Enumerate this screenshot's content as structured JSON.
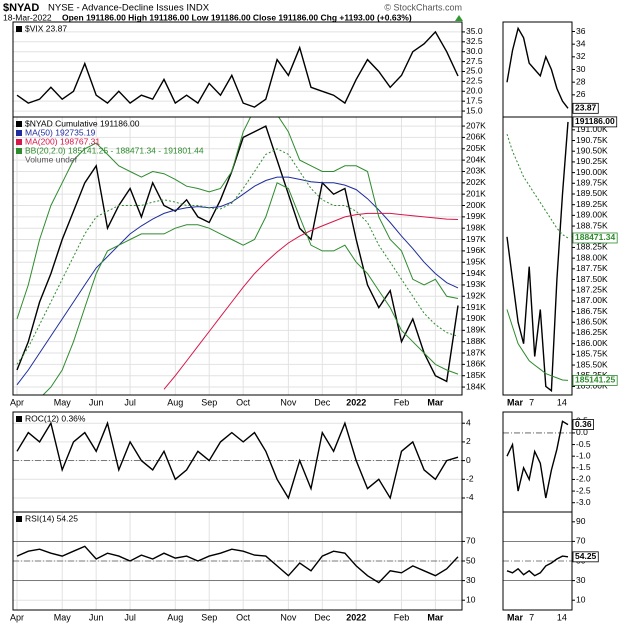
{
  "header": {
    "symbol": "$NYAD",
    "name": "NYSE - Advance-Decline Issues INDX",
    "source": "© StockCharts.com",
    "date": "18-Mar-2022",
    "quote": "Open 191186.00 High 191186.00 Low 191186.00 Close 191186.00 Chg +1193.00 (+0.63%)"
  },
  "chart_data": [
    {
      "type": "line",
      "grid": true,
      "series": [
        {
          "name": "$VIX 23.87",
          "color": "#000000",
          "values": [
            19,
            17,
            18,
            21,
            18,
            20,
            27,
            19,
            17,
            20,
            17,
            19,
            18,
            23,
            17,
            19,
            17,
            22,
            19,
            24,
            17,
            16,
            18,
            28,
            24,
            31,
            21,
            20,
            19,
            17,
            23,
            28,
            25,
            21,
            24,
            30,
            32,
            35,
            30,
            23.87
          ]
        }
      ],
      "ylim": [
        13.5,
        37.5
      ],
      "yticks": [
        {
          "value": 35,
          "label": "35.0"
        },
        {
          "value": 32.5,
          "label": "32.5"
        },
        {
          "value": 30,
          "label": "30.0"
        },
        {
          "value": 27.5,
          "label": "27.5"
        },
        {
          "value": 25,
          "label": "25.0"
        },
        {
          "value": 22.5,
          "label": "22.5"
        },
        {
          "value": 20,
          "label": "20.0"
        },
        {
          "value": 17.5,
          "label": "17.5"
        },
        {
          "value": 15,
          "label": "15.0"
        }
      ],
      "zoom": {
        "series": [
          {
            "color": "#000000",
            "values": [
              28,
              33,
              36.5,
              35,
              31,
              30,
              29,
              32,
              30,
              27,
              25,
              23.87
            ]
          }
        ],
        "ylim": [
          22.5,
          37.5
        ],
        "yticks": [
          36,
          34,
          32,
          30,
          28,
          26
        ],
        "tags": [
          {
            "value": 23.87,
            "label": "23.87",
            "color": "#000000"
          }
        ]
      }
    },
    {
      "type": "line",
      "grid": true,
      "categories": [
        "Apr",
        null,
        null,
        null,
        "May",
        null,
        null,
        "Jun",
        null,
        null,
        "Jul",
        null,
        null,
        null,
        "Aug",
        null,
        null,
        "Sep",
        null,
        null,
        "Oct",
        null,
        null,
        null,
        "Nov",
        null,
        null,
        "Dec",
        null,
        null,
        "2022",
        null,
        null,
        null,
        "Feb",
        null,
        null,
        "Mar",
        null,
        null
      ],
      "series": [
        {
          "name": "$NYAD Cumulative 191186.00",
          "color": "#000000",
          "values": [
            185500,
            188000,
            191500,
            194000,
            197000,
            199500,
            202000,
            203500,
            198000,
            200000,
            201500,
            199000,
            202000,
            200000,
            199500,
            200500,
            199000,
            198500,
            200500,
            203000,
            206000,
            206500,
            207000,
            204000,
            201000,
            198000,
            197000,
            202000,
            201000,
            201500,
            197000,
            193000,
            191000,
            192500,
            188000,
            190000,
            187000,
            185000,
            184500,
            191186
          ]
        },
        {
          "name": "MA(50) 192735.19",
          "color": "#1f2d9c",
          "values": [
            184200,
            185500,
            187000,
            188500,
            190000,
            191500,
            193000,
            194500,
            195500,
            196500,
            197500,
            198200,
            198800,
            199300,
            199600,
            199800,
            199900,
            199800,
            199900,
            200300,
            201000,
            201700,
            202200,
            202500,
            202500,
            202300,
            202100,
            202000,
            202000,
            201800,
            201400,
            200600,
            199600,
            198500,
            197300,
            196200,
            195000,
            194000,
            193200,
            192735
          ]
        },
        {
          "name": "MA(200) 198767.31",
          "color": "#d6174a",
          "values": [
            null,
            null,
            null,
            null,
            null,
            null,
            null,
            null,
            null,
            null,
            null,
            null,
            null,
            183800,
            185000,
            186300,
            187600,
            188900,
            190200,
            191500,
            192800,
            194000,
            195000,
            195900,
            196700,
            197300,
            197800,
            198200,
            198600,
            199000,
            199200,
            199300,
            199300,
            199300,
            199200,
            199100,
            199000,
            198900,
            198800,
            198767
          ]
        },
        {
          "name": "BB(20,2.0) 185141.25 - 188471.34 - 191801.44",
          "color": "#2e8b2e",
          "values": [
            190000,
            193000,
            197000,
            200000,
            202000,
            204000,
            205000,
            205500,
            204500,
            203500,
            203000,
            202500,
            203000,
            202800,
            202300,
            201700,
            201500,
            201200,
            201500,
            203000,
            206500,
            208500,
            208500,
            208000,
            206500,
            204000,
            203500,
            203000,
            203000,
            203500,
            203500,
            203000,
            199000,
            197000,
            196000,
            193500,
            193000,
            193500,
            192000,
            191801
          ]
        },
        {
          "color": "#2e8b2e",
          "style": "dotted",
          "values": [
            186000,
            187500,
            189500,
            191500,
            193500,
            195500,
            197500,
            199000,
            199500,
            200000,
            200000,
            200000,
            200300,
            200500,
            200300,
            200000,
            200000,
            199800,
            199700,
            200200,
            201500,
            203000,
            204500,
            205000,
            204500,
            203000,
            201500,
            200500,
            200000,
            200000,
            199500,
            198500,
            196500,
            195000,
            193500,
            192000,
            190500,
            189500,
            188800,
            188471
          ]
        },
        {
          "color": "#2e8b2e",
          "values": [
            183000,
            182500,
            183000,
            184000,
            185500,
            188000,
            191000,
            194000,
            196000,
            196500,
            197000,
            197500,
            197500,
            197500,
            198000,
            198300,
            198300,
            198000,
            197500,
            197000,
            196500,
            197000,
            199000,
            202000,
            201500,
            199000,
            196500,
            196000,
            196000,
            196500,
            195000,
            194000,
            192500,
            191000,
            189000,
            188000,
            187000,
            186000,
            185500,
            185141
          ]
        }
      ],
      "notes": [
        "Volume undef"
      ],
      "ylim": [
        183300,
        207800
      ],
      "yticks": [
        {
          "value": 207000,
          "label": "207K"
        },
        {
          "value": 206000,
          "label": "206K"
        },
        {
          "value": 205000,
          "label": "205K"
        },
        {
          "value": 204000,
          "label": "204K"
        },
        {
          "value": 203000,
          "label": "203K"
        },
        {
          "value": 202000,
          "label": "202K"
        },
        {
          "value": 201000,
          "label": "201K"
        },
        {
          "value": 200000,
          "label": "200K"
        },
        {
          "value": 199000,
          "label": "199K"
        },
        {
          "value": 198000,
          "label": "198K"
        },
        {
          "value": 197000,
          "label": "197K"
        },
        {
          "value": 196000,
          "label": "196K"
        },
        {
          "value": 195000,
          "label": "195K"
        },
        {
          "value": 194000,
          "label": "194K"
        },
        {
          "value": 193000,
          "label": "193K"
        },
        {
          "value": 192000,
          "label": "192K"
        },
        {
          "value": 191000,
          "label": "191K"
        },
        {
          "value": 190000,
          "label": "190K"
        },
        {
          "value": 189000,
          "label": "189K"
        },
        {
          "value": 188000,
          "label": "188K"
        },
        {
          "value": 187000,
          "label": "187K"
        },
        {
          "value": 186000,
          "label": "186K"
        },
        {
          "value": 185000,
          "label": "185K"
        },
        {
          "value": 184000,
          "label": "184K"
        }
      ],
      "zoom": {
        "categories": [
          "Mar",
          null,
          null,
          null,
          "7",
          null,
          null,
          null,
          null,
          "14",
          null,
          null
        ],
        "series": [
          {
            "color": "#000000",
            "values": [
              188500,
              187500,
              186500,
              186000,
              187800,
              185700,
              186800,
              185000,
              184900,
              187500,
              189500,
              191186
            ]
          },
          {
            "color": "#2e8b2e",
            "style": "dotted",
            "values": [
              190900,
              190500,
              190200,
              189900,
              189700,
              189500,
              189300,
              189100,
              188900,
              188700,
              188550,
              188471
            ]
          },
          {
            "color": "#2e8b2e",
            "values": [
              186800,
              186400,
              186000,
              185800,
              185600,
              185500,
              185400,
              185300,
              185250,
              185200,
              185150,
              185141
            ]
          }
        ],
        "ylim": [
          184800,
          191300
        ],
        "yticks": [
          {
            "value": 191000,
            "label": "191.00K"
          },
          {
            "value": 190750,
            "label": "190.75K"
          },
          {
            "value": 190500,
            "label": "190.50K"
          },
          {
            "value": 190250,
            "label": "190.25K"
          },
          {
            "value": 190000,
            "label": "190.00K"
          },
          {
            "value": 189750,
            "label": "189.75K"
          },
          {
            "value": 189500,
            "label": "189.50K"
          },
          {
            "value": 189250,
            "label": "189.25K"
          },
          {
            "value": 189000,
            "label": "189.00K"
          },
          {
            "value": 188750,
            "label": "188.75K"
          },
          {
            "value": 188500,
            "label": "188.50K"
          },
          {
            "value": 188250,
            "label": "188.25K"
          },
          {
            "value": 188000,
            "label": "188.00K"
          },
          {
            "value": 187750,
            "label": "187.75K"
          },
          {
            "value": 187500,
            "label": "187.50K"
          },
          {
            "value": 187250,
            "label": "187.25K"
          },
          {
            "value": 187000,
            "label": "187.00K"
          },
          {
            "value": 186750,
            "label": "186.75K"
          },
          {
            "value": 186500,
            "label": "186.50K"
          },
          {
            "value": 186250,
            "label": "186.25K"
          },
          {
            "value": 186000,
            "label": "186.00K"
          },
          {
            "value": 185750,
            "label": "185.75K"
          },
          {
            "value": 185500,
            "label": "185.50K"
          },
          {
            "value": 185250,
            "label": "185.25K"
          },
          {
            "value": 185000,
            "label": "185.00K"
          }
        ],
        "tags": [
          {
            "value": 191186,
            "label": "191186.00",
            "color": "#000000"
          },
          {
            "value": 188471.34,
            "label": "188471.34",
            "color": "#2e8b2e"
          },
          {
            "value": 185141.25,
            "label": "185141.25",
            "color": "#2e8b2e"
          }
        ]
      }
    },
    {
      "type": "line",
      "grid": true,
      "series": [
        {
          "name": "ROC(12) 0.36%",
          "color": "#000000",
          "values": [
            1,
            3,
            2,
            4,
            -1,
            2,
            3,
            1,
            4,
            -1,
            2,
            0,
            -1,
            1,
            -2,
            -1,
            1,
            0,
            2,
            3,
            2,
            3,
            1,
            -2,
            -4,
            0,
            -3,
            3,
            1,
            4,
            0,
            -3,
            -2,
            -4,
            1,
            2,
            -1,
            -2,
            0,
            0.36
          ]
        }
      ],
      "ref_lines": [
        0
      ],
      "ylim": [
        -5.5,
        5.2
      ],
      "yticks": [
        4,
        2,
        0,
        -2,
        -4
      ],
      "zoom": {
        "series": [
          {
            "color": "#000000",
            "values": [
              -1,
              -0.5,
              -2.5,
              -1.5,
              -2,
              -0.8,
              -1.3,
              -2.8,
              -1.6,
              -0.7,
              0.5,
              0.36
            ]
          }
        ],
        "ref_lines": [
          0
        ],
        "ylim": [
          -3.4,
          0.9
        ],
        "yticks": [
          0.5,
          {
            "value": 0,
            "label": "0.0"
          },
          -0.5,
          {
            "value": -1,
            "label": "-1.0"
          },
          -1.5,
          {
            "value": -2,
            "label": "-2.0"
          },
          -2.5,
          {
            "value": -3,
            "label": "-3.0"
          }
        ],
        "tags": [
          {
            "value": 0.36,
            "label": "0.36",
            "color": "#000000"
          }
        ]
      }
    },
    {
      "type": "line",
      "grid": true,
      "categories": [
        "Apr",
        null,
        null,
        null,
        "May",
        null,
        null,
        "Jun",
        null,
        null,
        "Jul",
        null,
        null,
        null,
        "Aug",
        null,
        null,
        "Sep",
        null,
        null,
        "Oct",
        null,
        null,
        null,
        "Nov",
        null,
        null,
        "Dec",
        null,
        null,
        "2022",
        null,
        null,
        null,
        "Feb",
        null,
        null,
        "Mar",
        null,
        null
      ],
      "series": [
        {
          "name": "RSI(14) 54.25",
          "color": "#000000",
          "values": [
            55,
            60,
            62,
            58,
            55,
            60,
            65,
            52,
            58,
            55,
            50,
            56,
            52,
            58,
            53,
            55,
            50,
            55,
            58,
            62,
            60,
            56,
            55,
            45,
            35,
            48,
            40,
            55,
            60,
            58,
            45,
            35,
            28,
            40,
            38,
            45,
            40,
            35,
            42,
            54.25
          ]
        }
      ],
      "ref_lines": [
        70,
        50,
        30
      ],
      "ylim": [
        0,
        100
      ],
      "yticks": [
        70,
        50,
        30,
        10
      ],
      "zoom": {
        "categories": [
          "Mar",
          null,
          null,
          null,
          "7",
          null,
          null,
          null,
          null,
          "14",
          null,
          null
        ],
        "series": [
          {
            "color": "#000000",
            "values": [
              40,
              38,
              42,
              36,
              40,
              35,
              38,
              45,
              48,
              52,
              55,
              54.25
            ]
          }
        ],
        "ref_lines": [
          70,
          50,
          30
        ],
        "ylim": [
          0,
          100
        ],
        "yticks": [
          90,
          70,
          50,
          30,
          10
        ],
        "tags": [
          {
            "value": 54.25,
            "label": "54.25",
            "color": "#000000"
          }
        ]
      }
    }
  ]
}
